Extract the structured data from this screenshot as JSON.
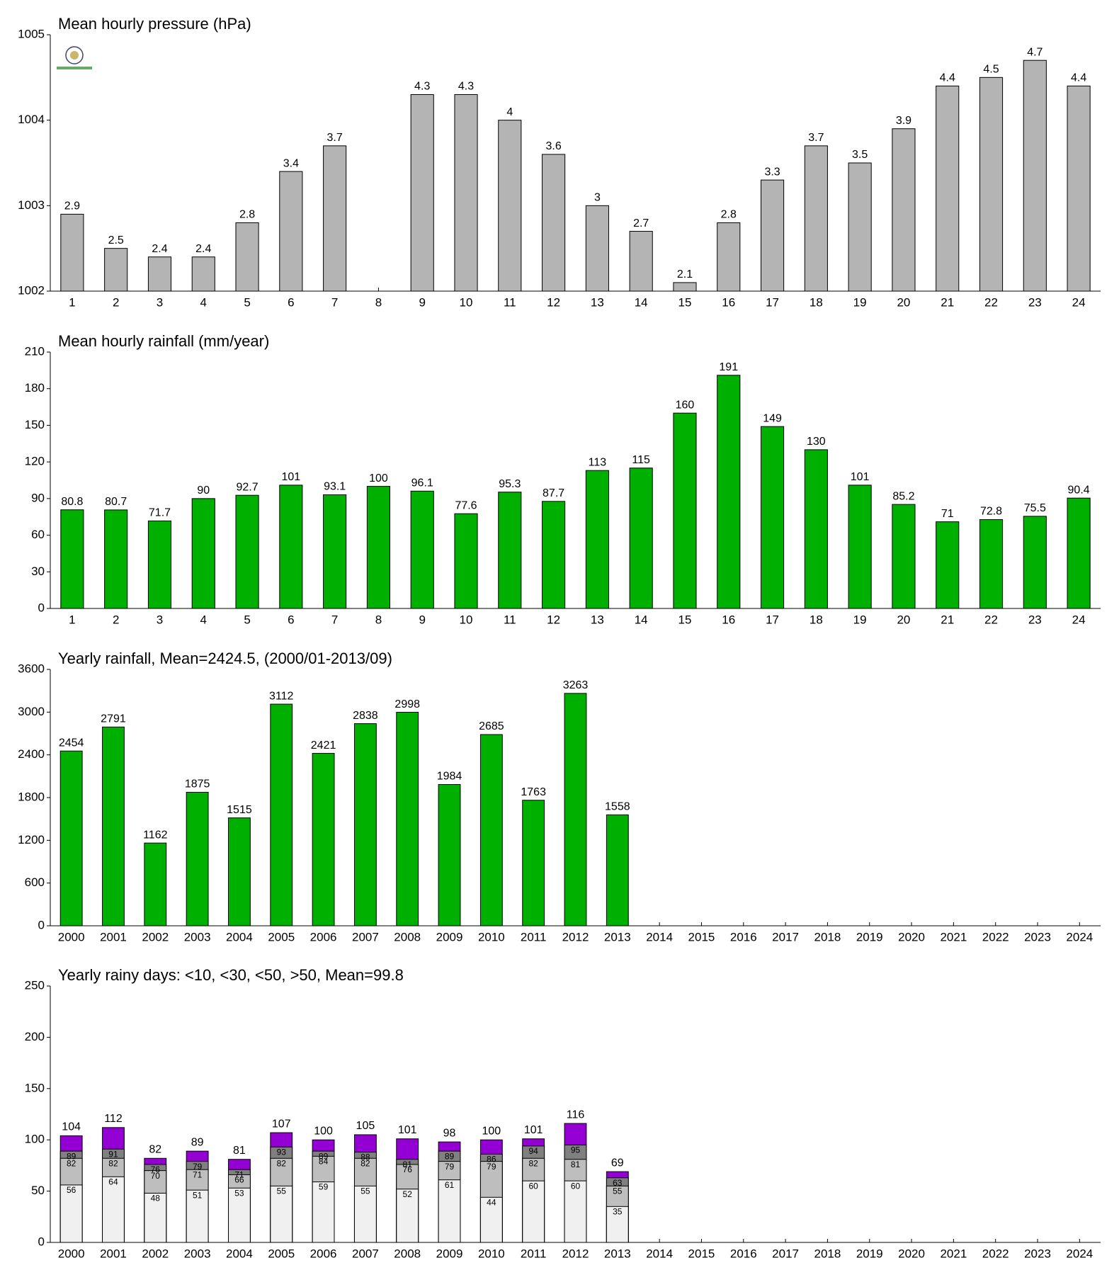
{
  "chart_data": [
    {
      "type": "bar",
      "title": "Mean hourly pressure (hPa)",
      "categories": [
        "1",
        "2",
        "3",
        "4",
        "5",
        "6",
        "7",
        "8",
        "9",
        "10",
        "11",
        "12",
        "13",
        "14",
        "15",
        "16",
        "17",
        "18",
        "19",
        "20",
        "21",
        "22",
        "23",
        "24"
      ],
      "values": [
        1002.9,
        1002.5,
        1002.4,
        1002.4,
        1002.8,
        1003.4,
        1003.7,
        null,
        1004.3,
        1004.3,
        1004,
        1003.6,
        1003,
        1002.7,
        1002.1,
        1002.8,
        1003.3,
        1003.7,
        1003.5,
        1003.9,
        1004.4,
        1004.5,
        1004.7,
        1004.4
      ],
      "value_labels": [
        "2.9",
        "2.5",
        "2.4",
        "2.4",
        "2.8",
        "3.4",
        "3.7",
        null,
        "4.3",
        "4.3",
        "4",
        "3.6",
        "3",
        "2.7",
        "2.1",
        "2.8",
        "3.3",
        "3.7",
        "3.5",
        "3.9",
        "4.4",
        "4.5",
        "4.7",
        "4.4"
      ],
      "color": "#b4b4b4",
      "ylim": [
        1002,
        1005
      ],
      "yticks": [
        1002,
        1003,
        1004,
        1005
      ]
    },
    {
      "type": "bar",
      "title": "Mean hourly rainfall (mm/year)",
      "categories": [
        "1",
        "2",
        "3",
        "4",
        "5",
        "6",
        "7",
        "8",
        "9",
        "10",
        "11",
        "12",
        "13",
        "14",
        "15",
        "16",
        "17",
        "18",
        "19",
        "20",
        "21",
        "22",
        "23",
        "24"
      ],
      "values": [
        80.8,
        80.7,
        71.7,
        90,
        92.7,
        101,
        93.1,
        100,
        96.1,
        77.6,
        95.3,
        87.7,
        113,
        115,
        160,
        191,
        149,
        130,
        101,
        85.2,
        71,
        72.8,
        75.5,
        90.4
      ],
      "color": "#00b000",
      "ylim": [
        0,
        210
      ],
      "yticks": [
        0,
        30,
        60,
        90,
        120,
        150,
        180,
        210
      ]
    },
    {
      "type": "bar",
      "title": "Yearly rainfall, Mean=2424.5, (2000/01-2013/09)",
      "categories": [
        "2000",
        "2001",
        "2002",
        "2003",
        "2004",
        "2005",
        "2006",
        "2007",
        "2008",
        "2009",
        "2010",
        "2011",
        "2012",
        "2013",
        "2014",
        "2015",
        "2016",
        "2017",
        "2018",
        "2019",
        "2020",
        "2021",
        "2022",
        "2023",
        "2024"
      ],
      "values": [
        2454,
        2791,
        1162,
        1875,
        1515,
        3112,
        2421,
        2838,
        2998,
        1984,
        2685,
        1763,
        3263,
        1558,
        null,
        null,
        null,
        null,
        null,
        null,
        null,
        null,
        null,
        null,
        null
      ],
      "color": "#00b000",
      "ylim": [
        0,
        3600
      ],
      "yticks": [
        0,
        600,
        1200,
        1800,
        2400,
        3000,
        3600
      ]
    },
    {
      "type": "overlap",
      "title": "Yearly rainy days: <10, <30, <50, >50, Mean=99.8",
      "categories": [
        "2000",
        "2001",
        "2002",
        "2003",
        "2004",
        "2005",
        "2006",
        "2007",
        "2008",
        "2009",
        "2010",
        "2011",
        "2012",
        "2013",
        "2014",
        "2015",
        "2016",
        "2017",
        "2018",
        "2019",
        "2020",
        "2021",
        "2022",
        "2023",
        "2024"
      ],
      "series": [
        {
          "color": "#f0f0f0",
          "values": [
            56,
            64,
            48,
            51,
            53,
            55,
            59,
            55,
            52,
            61,
            44,
            60,
            60,
            35,
            null,
            null,
            null,
            null,
            null,
            null,
            null,
            null,
            null,
            null,
            null
          ]
        },
        {
          "color": "#bebebe",
          "values": [
            82,
            82,
            70,
            71,
            66,
            82,
            84,
            82,
            76,
            79,
            79,
            82,
            81,
            55,
            null,
            null,
            null,
            null,
            null,
            null,
            null,
            null,
            null,
            null,
            null
          ]
        },
        {
          "color": "#808080",
          "values": [
            89,
            91,
            76,
            79,
            71,
            93,
            89,
            88,
            81,
            89,
            86,
            94,
            95,
            63,
            null,
            null,
            null,
            null,
            null,
            null,
            null,
            null,
            null,
            null,
            null
          ]
        },
        {
          "color": "#9400d3",
          "values": [
            104,
            112,
            82,
            89,
            81,
            107,
            100,
            105,
            101,
            98,
            100,
            101,
            116,
            69,
            null,
            null,
            null,
            null,
            null,
            null,
            null,
            null,
            null,
            null,
            null
          ]
        }
      ],
      "ylim": [
        0,
        250
      ],
      "yticks": [
        0,
        50,
        100,
        150,
        200,
        250
      ]
    }
  ]
}
